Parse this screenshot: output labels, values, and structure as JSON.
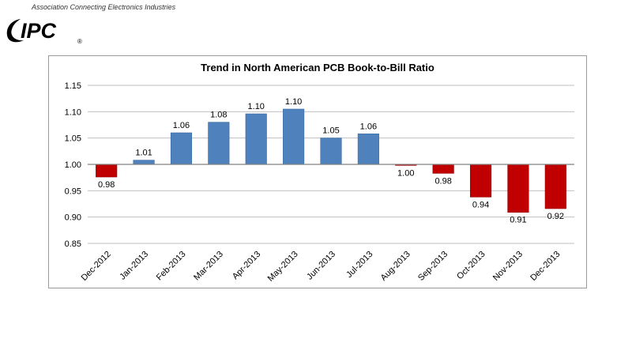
{
  "header": {
    "tagline": "Association Connecting Electronics Industries",
    "logo_text": "IPC",
    "registered_mark": "®"
  },
  "colors": {
    "above": "#4f81bd",
    "above_edge": "#3a6aa3",
    "below": "#c00000",
    "below_edge": "#9a0000",
    "grid": "#bfbfbf",
    "baseline": "#808080"
  },
  "chart_data": {
    "type": "bar",
    "title": "Trend in North American PCB Book-to-Bill Ratio",
    "xlabel": "",
    "ylabel": "",
    "ylim": [
      0.85,
      1.15
    ],
    "yticks": [
      "0.85",
      "0.90",
      "0.95",
      "1.00",
      "1.05",
      "1.10",
      "1.15"
    ],
    "baseline": 1.0,
    "grid": true,
    "legend": "none",
    "categories": [
      "Dec-2012",
      "Jan-2013",
      "Feb-2013",
      "Mar-2013",
      "Apr-2013",
      "May-2013",
      "Jun-2013",
      "Jul-2013",
      "Aug-2013",
      "Sep-2013",
      "Oct-2013",
      "Nov-2013",
      "Dec-2013"
    ],
    "values": [
      0.976,
      1.008,
      1.06,
      1.08,
      1.096,
      1.105,
      1.05,
      1.058,
      0.998,
      0.983,
      0.938,
      0.909,
      0.916
    ],
    "labels": [
      "0.98",
      "1.01",
      "1.06",
      "1.08",
      "1.10",
      "1.10",
      "1.05",
      "1.06",
      "1.00",
      "0.98",
      "0.94",
      "0.91",
      "0.92"
    ]
  }
}
